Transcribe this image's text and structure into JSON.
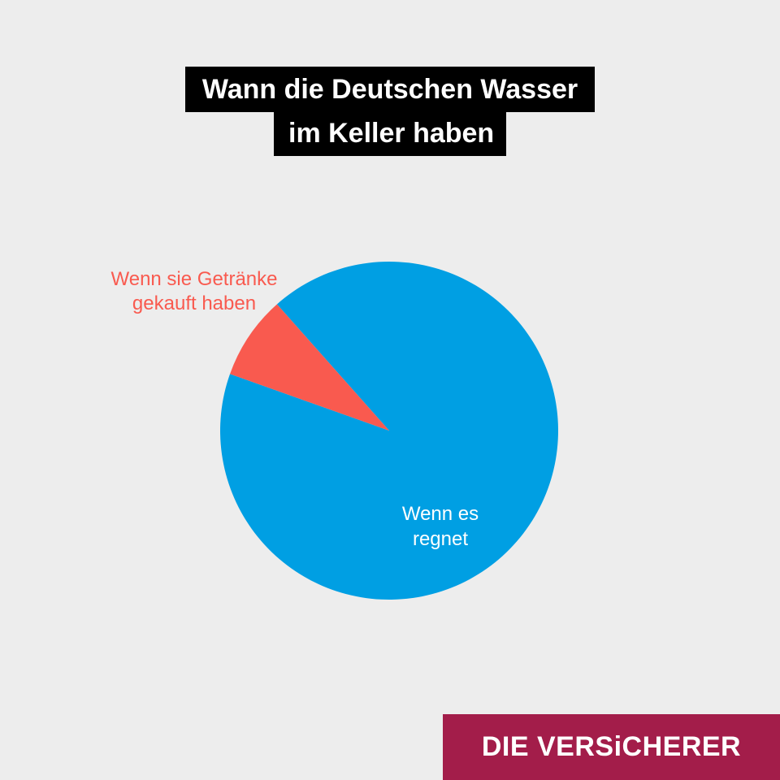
{
  "title": {
    "line1": "Wann die Deutschen Wasser",
    "line2": "im Keller haben"
  },
  "chart_data": {
    "type": "pie",
    "slices": [
      {
        "label_lines": [
          "Wenn es",
          "regnet"
        ],
        "value": 92,
        "color": "#009fe3",
        "label_color": "#ffffff"
      },
      {
        "label_lines": [
          "Wenn sie Getränke",
          "gekauft haben"
        ],
        "value": 8,
        "color": "#f95a4f",
        "label_color": "#f95a4f"
      }
    ]
  },
  "brand": {
    "name": "DIE VERSiCHERER",
    "color": "#a31d4a"
  },
  "colors": {
    "background": "#ededed",
    "title_box": "#000000"
  }
}
